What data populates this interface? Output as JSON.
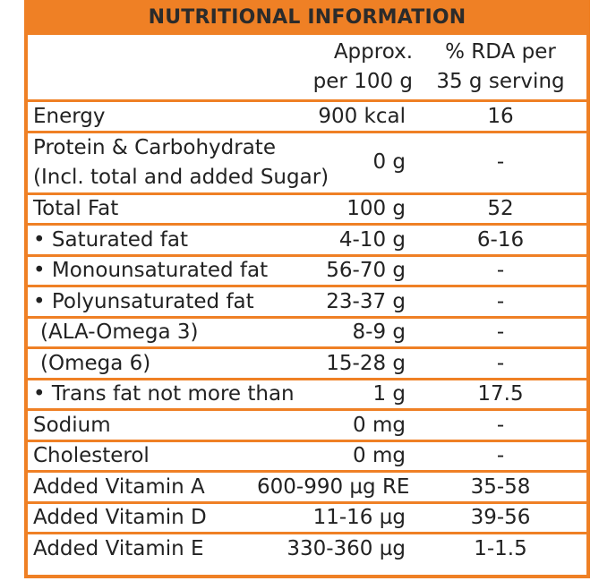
{
  "title": "NUTRITIONAL INFORMATION",
  "columns": {
    "amount_line1": "Approx.",
    "amount_line2": "per 100 g",
    "rda_line1": "% RDA per",
    "rda_line2": "35 g serving"
  },
  "rows": [
    {
      "name": "Energy",
      "amount": "900 kcal",
      "rda": "16"
    },
    {
      "name_line1": "Protein & Carbohydrate",
      "name_line2": "(Incl. total and added Sugar)",
      "amount": "0 g",
      "rda": "-"
    },
    {
      "name": "Total Fat",
      "amount": "100 g",
      "rda": "52"
    },
    {
      "name": "• Saturated fat",
      "amount": "4-10 g",
      "rda": "6-16"
    },
    {
      "name": "• Monounsaturated fat",
      "amount": "56-70 g",
      "rda": "-"
    },
    {
      "name": "• Polyunsaturated fat",
      "amount": "23-37 g",
      "rda": "-"
    },
    {
      "name": "(ALA-Omega 3)",
      "amount": "8-9 g",
      "rda": "-"
    },
    {
      "name": "(Omega 6)",
      "amount": "15-28 g",
      "rda": "-"
    },
    {
      "name": "• Trans fat not more than",
      "amount": "1 g",
      "rda": "17.5"
    },
    {
      "name": "Sodium",
      "amount": "0 mg",
      "rda": "-"
    },
    {
      "name": "Cholesterol",
      "amount": "0 mg",
      "rda": "-"
    },
    {
      "name": "Added Vitamin A",
      "amount": "600-990 µg RE",
      "rda": "35-58"
    },
    {
      "name": "Added Vitamin D",
      "amount": "11-16 µg",
      "rda": "39-56"
    },
    {
      "name": "Added Vitamin E",
      "amount": "330-360 µg",
      "rda": "1-1.5"
    }
  ],
  "colors": {
    "accent": "#ef8025",
    "text": "#222222"
  }
}
